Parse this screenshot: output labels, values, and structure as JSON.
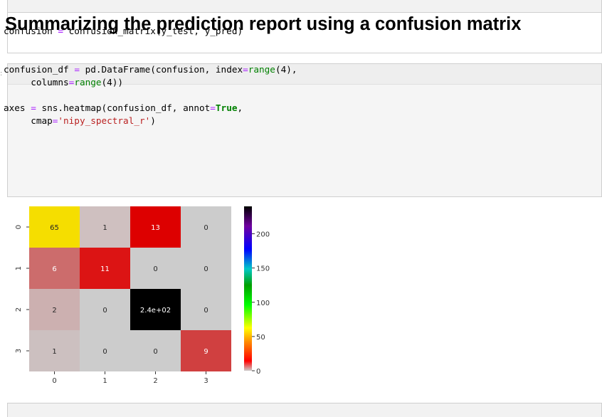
{
  "markdown": {
    "title": "Summarizing the prediction report using a confusion matrix"
  },
  "prompt_marker": ":",
  "code": {
    "line1": {
      "var": "confusion ",
      "op": "=",
      "rest": " confusion_matrix(y_test, y_pred)"
    },
    "line2": {
      "var": "confusion_df ",
      "op": "=",
      "call": " pd.DataFrame(confusion, index",
      "op2": "=",
      "fn": "range",
      "arg": "(4),"
    },
    "line3": {
      "indent": "     columns",
      "op": "=",
      "fn": "range",
      "arg": "(4))"
    },
    "line4": {
      "var": "axes ",
      "op": "=",
      "call": " sns.heatmap(confusion_df, annot",
      "op2": "=",
      "kw": "True",
      "tail": ","
    },
    "line5": {
      "indent": "     cmap",
      "op": "=",
      "str": "'nipy_spectral_r'",
      "tail": ")"
    }
  },
  "chart_data": {
    "type": "heatmap",
    "rows": [
      "0",
      "1",
      "2",
      "3"
    ],
    "columns": [
      "0",
      "1",
      "2",
      "3"
    ],
    "values": [
      [
        65,
        1,
        13,
        0
      ],
      [
        6,
        11,
        0,
        0
      ],
      [
        2,
        0,
        240,
        0
      ],
      [
        1,
        0,
        0,
        9
      ]
    ],
    "annotations": [
      [
        "65",
        "1",
        "13",
        "0"
      ],
      [
        "6",
        "11",
        "0",
        "0"
      ],
      [
        "2",
        "0",
        "2.4e+02",
        "0"
      ],
      [
        "1",
        "0",
        "0",
        "9"
      ]
    ],
    "colormap": "nipy_spectral_r",
    "colorbar_range": [
      0,
      240
    ],
    "colorbar_ticks": [
      0,
      50,
      100,
      150,
      200
    ],
    "cell_colors": [
      [
        "#f5de00",
        "#cfc0c0",
        "#dd0000",
        "#cccccc"
      ],
      [
        "#cc6c6c",
        "#dc1414",
        "#cccccc",
        "#cccccc"
      ],
      [
        "#ccb0b0",
        "#cccccc",
        "#000000",
        "#cccccc"
      ],
      [
        "#ccc0c0",
        "#cccccc",
        "#cccccc",
        "#d04040"
      ]
    ],
    "text_colors": [
      [
        "#262626",
        "#262626",
        "#ffffff",
        "#262626"
      ],
      [
        "#ffffff",
        "#ffffff",
        "#262626",
        "#262626"
      ],
      [
        "#262626",
        "#262626",
        "#ffffff",
        "#262626"
      ],
      [
        "#262626",
        "#262626",
        "#262626",
        "#ffffff"
      ]
    ]
  }
}
